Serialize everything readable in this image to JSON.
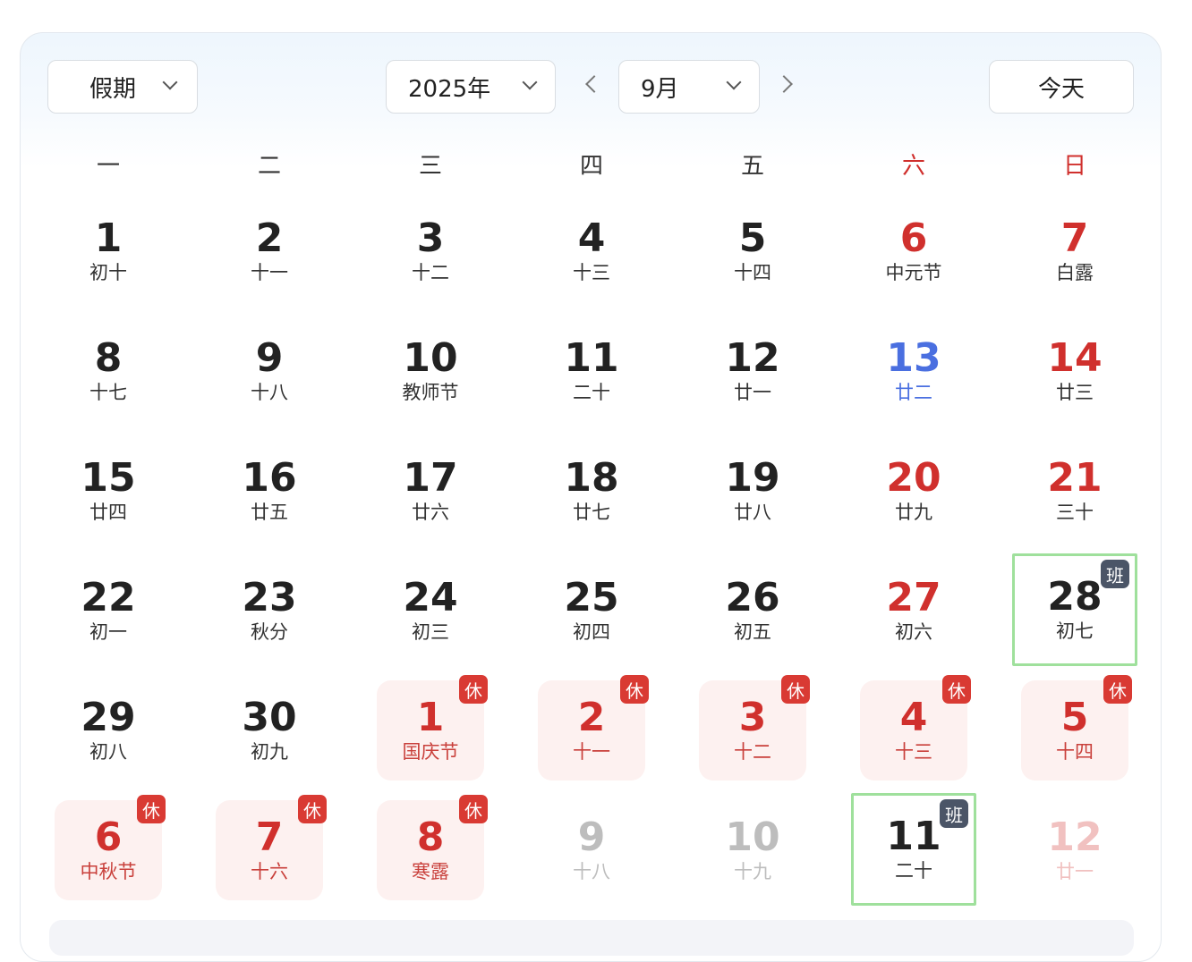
{
  "toolbar": {
    "holiday_select": "假期",
    "year_select": "2025年",
    "month_select": "9月",
    "today_button": "今天"
  },
  "weekdays": [
    "一",
    "二",
    "三",
    "四",
    "五",
    "六",
    "日"
  ],
  "colors": {
    "holiday": "#d0302d",
    "work_badge": "#4b5567",
    "selected_blue": "#4a6fe0",
    "work_border": "#9fe09c"
  },
  "cells": [
    {
      "day": "1",
      "lunar": "初十",
      "type": "normal"
    },
    {
      "day": "2",
      "lunar": "十一",
      "type": "normal"
    },
    {
      "day": "3",
      "lunar": "十二",
      "type": "normal"
    },
    {
      "day": "4",
      "lunar": "十三",
      "type": "normal"
    },
    {
      "day": "5",
      "lunar": "十四",
      "type": "normal"
    },
    {
      "day": "6",
      "lunar": "中元节",
      "type": "weekend"
    },
    {
      "day": "7",
      "lunar": "白露",
      "type": "weekend"
    },
    {
      "day": "8",
      "lunar": "十七",
      "type": "normal"
    },
    {
      "day": "9",
      "lunar": "十八",
      "type": "normal"
    },
    {
      "day": "10",
      "lunar": "教师节",
      "type": "normal"
    },
    {
      "day": "11",
      "lunar": "二十",
      "type": "normal"
    },
    {
      "day": "12",
      "lunar": "廿一",
      "type": "normal"
    },
    {
      "day": "13",
      "lunar": "廿二",
      "type": "blue"
    },
    {
      "day": "14",
      "lunar": "廿三",
      "type": "weekend"
    },
    {
      "day": "15",
      "lunar": "廿四",
      "type": "normal"
    },
    {
      "day": "16",
      "lunar": "廿五",
      "type": "normal"
    },
    {
      "day": "17",
      "lunar": "廿六",
      "type": "normal"
    },
    {
      "day": "18",
      "lunar": "廿七",
      "type": "normal"
    },
    {
      "day": "19",
      "lunar": "廿八",
      "type": "normal"
    },
    {
      "day": "20",
      "lunar": "廿九",
      "type": "weekend"
    },
    {
      "day": "21",
      "lunar": "三十",
      "type": "weekend"
    },
    {
      "day": "22",
      "lunar": "初一",
      "type": "normal"
    },
    {
      "day": "23",
      "lunar": "秋分",
      "type": "normal"
    },
    {
      "day": "24",
      "lunar": "初三",
      "type": "normal"
    },
    {
      "day": "25",
      "lunar": "初四",
      "type": "normal"
    },
    {
      "day": "26",
      "lunar": "初五",
      "type": "normal"
    },
    {
      "day": "27",
      "lunar": "初六",
      "type": "weekend"
    },
    {
      "day": "28",
      "lunar": "初七",
      "type": "work",
      "badge": "班"
    },
    {
      "day": "29",
      "lunar": "初八",
      "type": "normal"
    },
    {
      "day": "30",
      "lunar": "初九",
      "type": "normal"
    },
    {
      "day": "1",
      "lunar": "国庆节",
      "type": "holiday",
      "badge": "休"
    },
    {
      "day": "2",
      "lunar": "十一",
      "type": "holiday",
      "badge": "休"
    },
    {
      "day": "3",
      "lunar": "十二",
      "type": "holiday",
      "badge": "休"
    },
    {
      "day": "4",
      "lunar": "十三",
      "type": "holiday",
      "badge": "休"
    },
    {
      "day": "5",
      "lunar": "十四",
      "type": "holiday",
      "badge": "休"
    },
    {
      "day": "6",
      "lunar": "中秋节",
      "type": "holiday",
      "badge": "休"
    },
    {
      "day": "7",
      "lunar": "十六",
      "type": "holiday",
      "badge": "休"
    },
    {
      "day": "8",
      "lunar": "寒露",
      "type": "holiday",
      "badge": "休"
    },
    {
      "day": "9",
      "lunar": "十八",
      "type": "other"
    },
    {
      "day": "10",
      "lunar": "十九",
      "type": "other"
    },
    {
      "day": "11",
      "lunar": "二十",
      "type": "work",
      "badge": "班"
    },
    {
      "day": "12",
      "lunar": "廿一",
      "type": "otherwk"
    }
  ]
}
